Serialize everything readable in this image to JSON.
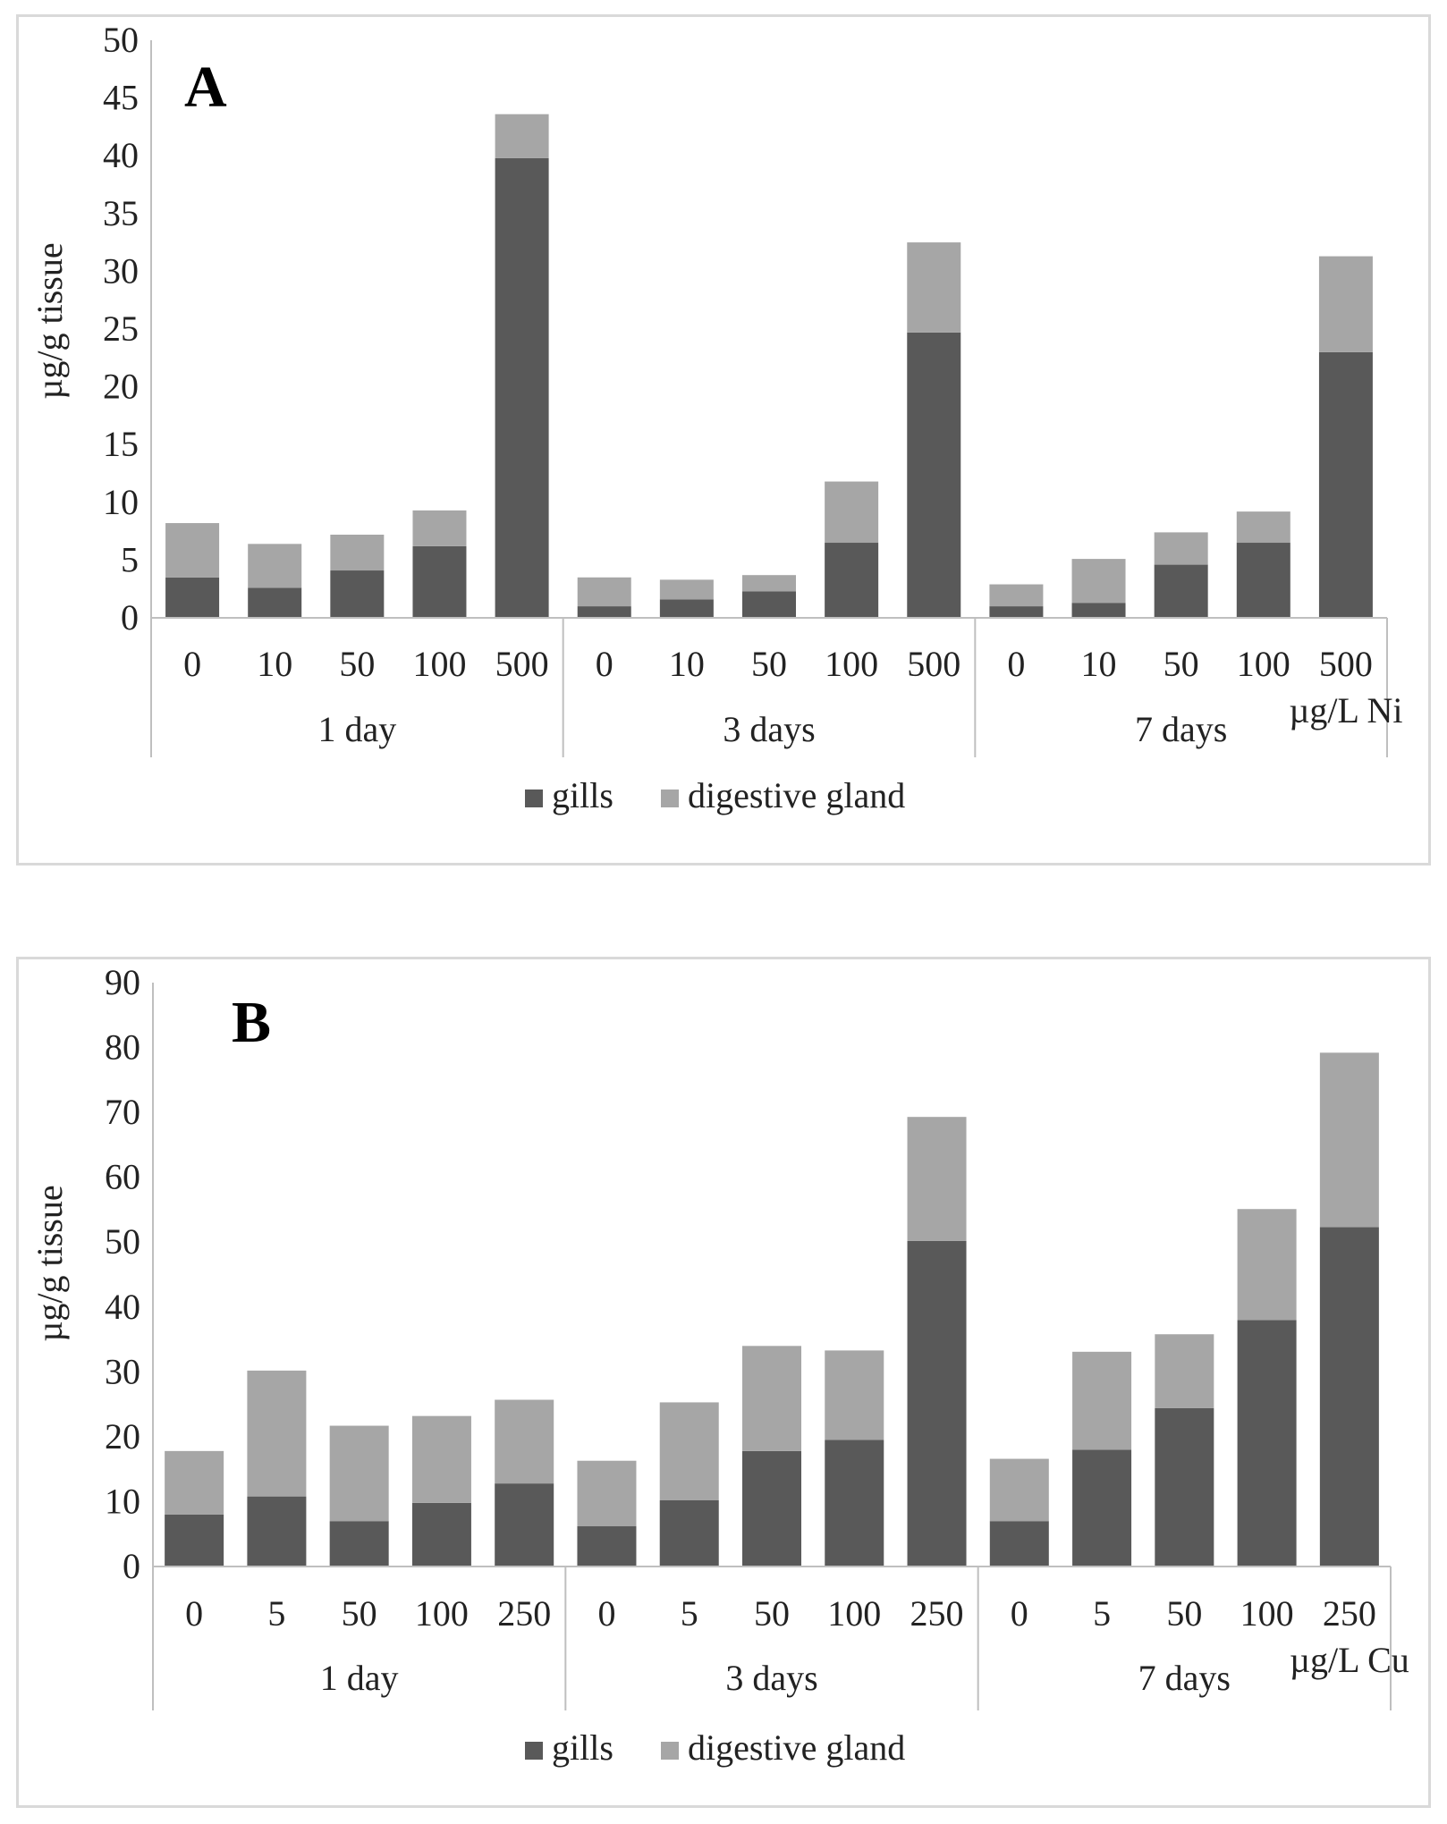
{
  "colors": {
    "gills": "#595959",
    "digestive_gland": "#a6a6a6",
    "axis": "#bfbfbf"
  },
  "chart_data": [
    {
      "type": "bar",
      "stacked": true,
      "panel_label": "A",
      "ylabel": "µg/g tissue",
      "ylim": [
        0,
        50
      ],
      "ytick_step": 5,
      "yticks": [
        "0",
        "5",
        "10",
        "15",
        "20",
        "25",
        "30",
        "35",
        "40",
        "45",
        "50"
      ],
      "unit_label": "µg/L Ni",
      "groups": [
        "1 day",
        "3 days",
        "7 days"
      ],
      "categories": [
        "0",
        "10",
        "50",
        "100",
        "500",
        "0",
        "10",
        "50",
        "100",
        "500",
        "0",
        "10",
        "50",
        "100",
        "500"
      ],
      "series": [
        {
          "name": "gills",
          "values": [
            3.5,
            2.6,
            4.1,
            6.2,
            39.8,
            1.0,
            1.6,
            2.3,
            6.5,
            24.7,
            1.0,
            1.3,
            4.6,
            6.5,
            23.0
          ]
        },
        {
          "name": "digestive gland",
          "values": [
            4.7,
            3.8,
            3.1,
            3.1,
            3.8,
            2.5,
            1.7,
            1.4,
            5.3,
            7.8,
            1.9,
            3.8,
            2.8,
            2.7,
            8.3
          ]
        }
      ],
      "legend": [
        "gills",
        "digestive gland"
      ],
      "legend_position": "bottom"
    },
    {
      "type": "bar",
      "stacked": true,
      "panel_label": "B",
      "ylabel": "µg/g tissue",
      "ylim": [
        0,
        90
      ],
      "ytick_step": 10,
      "yticks": [
        "0",
        "10",
        "20",
        "30",
        "40",
        "50",
        "60",
        "70",
        "80",
        "90"
      ],
      "unit_label": "µg/L Cu",
      "groups": [
        "1 day",
        "3 days",
        "7 days"
      ],
      "categories": [
        "0",
        "5",
        "50",
        "100",
        "250",
        "0",
        "5",
        "50",
        "100",
        "250",
        "0",
        "5",
        "50",
        "100",
        "250"
      ],
      "series": [
        {
          "name": "gills",
          "values": [
            8.0,
            10.8,
            7.0,
            9.8,
            12.8,
            6.2,
            10.2,
            17.8,
            19.5,
            50.2,
            7.0,
            18.0,
            24.4,
            38.0,
            52.3
          ]
        },
        {
          "name": "digestive gland",
          "values": [
            9.8,
            19.4,
            14.7,
            13.4,
            12.9,
            10.1,
            15.1,
            16.2,
            13.8,
            19.1,
            9.6,
            15.1,
            11.4,
            17.1,
            26.9
          ]
        }
      ],
      "legend": [
        "gills",
        "digestive gland"
      ],
      "legend_position": "bottom"
    }
  ]
}
